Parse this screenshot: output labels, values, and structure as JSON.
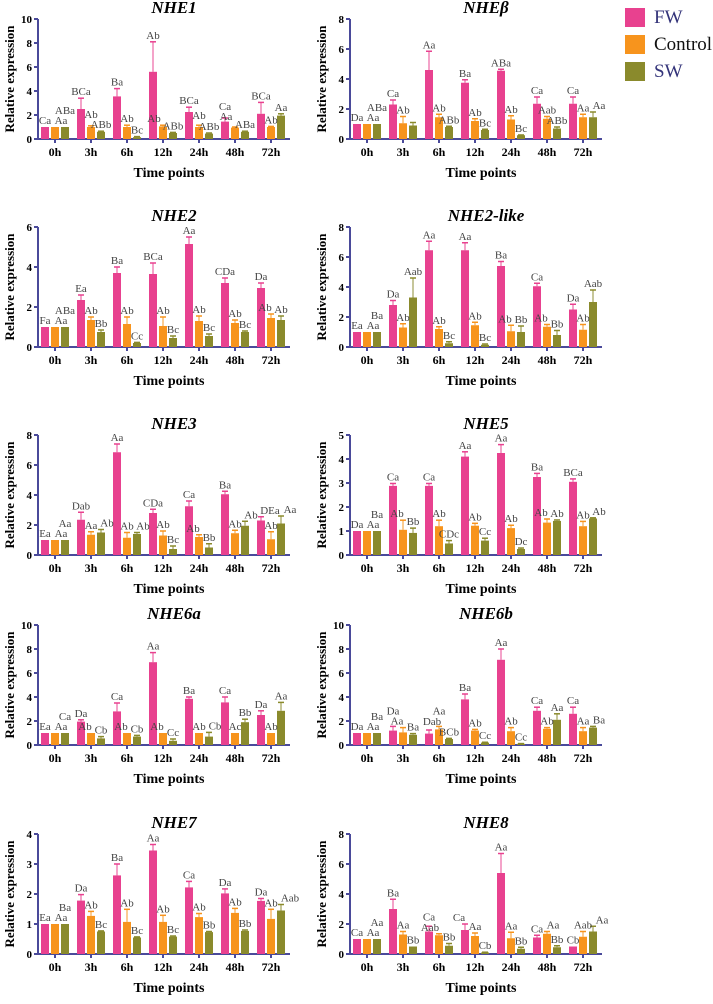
{
  "legend": [
    {
      "name": "FW",
      "color": "#e8418f",
      "text_color": "#34347a"
    },
    {
      "name": "Control",
      "color": "#f7941d",
      "text_color": "#111111"
    },
    {
      "name": "SW",
      "color": "#8a8a2c",
      "text_color": "#34347a"
    }
  ],
  "chart_data": [
    {
      "type": "bar",
      "title": "NHE1",
      "xlabel": "Time points",
      "ylabel": "Relative expression",
      "ylim": [
        0,
        10
      ],
      "ystep": 2,
      "categories": [
        "0h",
        "3h",
        "6h",
        "12h",
        "24h",
        "48h",
        "72h"
      ],
      "series": [
        {
          "name": "FW",
          "values": [
            1,
            2.5,
            3.55,
            5.6,
            2.25,
            1.45,
            2.1
          ],
          "errors": [
            0,
            0.9,
            0.65,
            2.5,
            0.4,
            0.3,
            0.95
          ],
          "labels": [
            "Ca",
            "BCa",
            "Ba",
            "Ab",
            "BCa",
            "Ca",
            "BCa"
          ]
        },
        {
          "name": "Control",
          "values": [
            1,
            1.0,
            1.0,
            1.05,
            1.0,
            0.95,
            1.0
          ],
          "errors": [
            0,
            0.1,
            0.15,
            0.1,
            0.15,
            0.05,
            0.05
          ],
          "labels": [
            "Aa",
            "Ab",
            "Ab",
            "Ab",
            "Ab",
            "Aa",
            "Ab"
          ]
        },
        {
          "name": "SW",
          "values": [
            1,
            0.6,
            0.15,
            0.5,
            0.45,
            0.6,
            1.95
          ],
          "errors": [
            0,
            0.05,
            0.05,
            0.05,
            0.05,
            0.05,
            0.15
          ],
          "labels": [
            "ABa",
            "ABb",
            "Bc",
            "ABb",
            "ABb",
            "ABa",
            "Aa"
          ]
        }
      ]
    },
    {
      "type": "bar",
      "title": "NHEβ",
      "xlabel": "Time points",
      "ylabel": "Relative expression",
      "ylim": [
        0,
        8
      ],
      "ystep": 2,
      "categories": [
        "0h",
        "3h",
        "6h",
        "12h",
        "24h",
        "48h",
        "72h"
      ],
      "series": [
        {
          "name": "FW",
          "values": [
            1,
            2.3,
            4.6,
            3.75,
            4.55,
            2.35,
            2.35
          ],
          "errors": [
            0,
            0.3,
            1.25,
            0.2,
            0.1,
            0.45,
            0.45
          ],
          "labels": [
            "Da",
            "Ca",
            "Aa",
            "Ba",
            "ABa",
            "Ca",
            "Ca"
          ]
        },
        {
          "name": "Control",
          "values": [
            1,
            1.05,
            1.45,
            1.2,
            1.3,
            1.35,
            1.45
          ],
          "errors": [
            0,
            0.45,
            0.2,
            0.15,
            0.25,
            0.15,
            0.2
          ],
          "labels": [
            "Aa",
            "Ab",
            "Ab",
            "Ab",
            "Ab",
            "Aab",
            "Aa"
          ]
        },
        {
          "name": "SW",
          "values": [
            1,
            0.9,
            0.8,
            0.6,
            0.25,
            0.7,
            1.45
          ],
          "errors": [
            0,
            0.2,
            0.05,
            0.05,
            0.02,
            0.1,
            0.35
          ],
          "labels": [
            "ABa",
            "",
            "ABb",
            "Bc",
            "Bc",
            "ABb",
            "Aa"
          ]
        }
      ]
    },
    {
      "type": "bar",
      "title": "NHE2",
      "xlabel": "Time points",
      "ylabel": "Relative expression",
      "ylim": [
        0,
        6
      ],
      "ystep": 2,
      "categories": [
        "0h",
        "3h",
        "6h",
        "12h",
        "24h",
        "48h",
        "72h"
      ],
      "series": [
        {
          "name": "FW",
          "values": [
            1,
            2.35,
            3.7,
            3.65,
            5.15,
            3.2,
            2.95
          ],
          "errors": [
            0,
            0.25,
            0.3,
            0.55,
            0.35,
            0.25,
            0.25
          ],
          "labels": [
            "Fa",
            "Ea",
            "Ba",
            "BCa",
            "Aa",
            "CDa",
            "Da"
          ]
        },
        {
          "name": "Control",
          "values": [
            1,
            1.35,
            1.15,
            1.05,
            1.3,
            1.2,
            1.45
          ],
          "errors": [
            0,
            0.15,
            0.35,
            0.45,
            0.25,
            0.15,
            0.2
          ],
          "labels": [
            "Aa",
            "Ab",
            "Ab",
            "Ab",
            "Ab",
            "Ab",
            "Ab"
          ]
        },
        {
          "name": "SW",
          "values": [
            1,
            0.75,
            0.2,
            0.45,
            0.55,
            0.75,
            1.35
          ],
          "errors": [
            0,
            0.1,
            0.03,
            0.1,
            0.1,
            0.05,
            0.2
          ],
          "labels": [
            "ABa",
            "Bb",
            "Cc",
            "Bc",
            "Bc",
            "Bc",
            "Ab"
          ]
        }
      ]
    },
    {
      "type": "bar",
      "title": "NHE2-like",
      "xlabel": "Time points",
      "ylabel": "Relative expression",
      "ylim": [
        0,
        8
      ],
      "ystep": 2,
      "categories": [
        "0h",
        "3h",
        "6h",
        "12h",
        "24h",
        "48h",
        "72h"
      ],
      "series": [
        {
          "name": "FW",
          "values": [
            1,
            2.8,
            6.45,
            6.45,
            5.4,
            4.05,
            2.5
          ],
          "errors": [
            0,
            0.3,
            0.6,
            0.5,
            0.3,
            0.2,
            0.35
          ],
          "labels": [
            "Ea",
            "Da",
            "Aa",
            "Aa",
            "Ba",
            "Ca",
            "Da"
          ]
        },
        {
          "name": "Control",
          "values": [
            1,
            1.3,
            1.2,
            1.45,
            1.05,
            1.35,
            1.15
          ],
          "errors": [
            0,
            0.25,
            0.15,
            0.2,
            0.4,
            0.15,
            0.35
          ],
          "labels": [
            "Aa",
            "Ab",
            "Ab",
            "Ab",
            "Ab",
            "Ab",
            "Ab"
          ]
        },
        {
          "name": "SW",
          "values": [
            1,
            3.3,
            0.25,
            0.15,
            1.0,
            0.8,
            3.0
          ],
          "errors": [
            0,
            1.3,
            0.1,
            0.05,
            0.4,
            0.3,
            0.8
          ],
          "labels": [
            "Ba",
            "Aab",
            "Bc",
            "Bc",
            "Bb",
            "Bb",
            "Aab"
          ]
        }
      ]
    },
    {
      "type": "bar",
      "title": "NHE3",
      "xlabel": "Time points",
      "ylabel": "Relative expression",
      "ylim": [
        0,
        8
      ],
      "ystep": 2,
      "categories": [
        "0h",
        "3h",
        "6h",
        "12h",
        "24h",
        "48h",
        "72h"
      ],
      "series": [
        {
          "name": "FW",
          "values": [
            1,
            2.35,
            6.85,
            2.8,
            3.25,
            4.05,
            2.3
          ],
          "errors": [
            0,
            0.5,
            0.55,
            0.25,
            0.35,
            0.2,
            0.25
          ],
          "labels": [
            "Ea",
            "Dab",
            "Aa",
            "CDa",
            "Ca",
            "Ba",
            "DEa"
          ]
        },
        {
          "name": "Control",
          "values": [
            1,
            1.35,
            1.15,
            1.3,
            1.2,
            1.45,
            1.05
          ],
          "errors": [
            0,
            0.2,
            0.35,
            0.3,
            0.15,
            0.2,
            0.5
          ],
          "labels": [
            "Aa",
            "Aa",
            "Ab",
            "Ab",
            "Ab",
            "Ab",
            "Ab"
          ]
        },
        {
          "name": "SW",
          "values": [
            1,
            1.5,
            1.4,
            0.4,
            0.5,
            1.95,
            2.1
          ],
          "errors": [
            0,
            0.2,
            0.1,
            0.2,
            0.25,
            0.3,
            0.5
          ],
          "labels": [
            "Aa",
            "Ab",
            "Ab",
            "Bc",
            "Bb",
            "Ab",
            "Aa"
          ]
        }
      ]
    },
    {
      "type": "bar",
      "title": "NHE5",
      "xlabel": "Time points",
      "ylabel": "Relative expression",
      "ylim": [
        0,
        5
      ],
      "ystep": 1,
      "categories": [
        "0h",
        "3h",
        "6h",
        "12h",
        "24h",
        "48h",
        "72h"
      ],
      "series": [
        {
          "name": "FW",
          "values": [
            1,
            2.88,
            2.88,
            4.1,
            4.25,
            3.25,
            3.05
          ],
          "errors": [
            0,
            0.1,
            0.1,
            0.2,
            0.35,
            0.15,
            0.12
          ],
          "labels": [
            "Da",
            "Ca",
            "Ca",
            "Aa",
            "Aa",
            "Ba",
            "BCa"
          ]
        },
        {
          "name": "Control",
          "values": [
            1,
            1.05,
            1.2,
            1.22,
            1.12,
            1.35,
            1.2
          ],
          "errors": [
            0,
            0.4,
            0.25,
            0.1,
            0.12,
            0.15,
            0.2
          ],
          "labels": [
            "Aa",
            "Ab",
            "Ab",
            "Ab",
            "Ab",
            "Ab",
            "Ab"
          ]
        },
        {
          "name": "SW",
          "values": [
            1,
            0.92,
            0.48,
            0.6,
            0.25,
            1.42,
            1.52
          ],
          "errors": [
            0,
            0.2,
            0.12,
            0.1,
            0.04,
            0.04,
            0.03
          ],
          "labels": [
            "Ba",
            "Bb",
            "CDc",
            "Cc",
            "Dc",
            "Ab",
            "Ab"
          ]
        }
      ]
    },
    {
      "type": "bar",
      "title": "NHE6a",
      "xlabel": "Time points",
      "ylabel": "Relative expression",
      "ylim": [
        0,
        10
      ],
      "ystep": 2,
      "categories": [
        "0h",
        "3h",
        "6h",
        "12h",
        "24h",
        "48h",
        "72h"
      ],
      "series": [
        {
          "name": "FW",
          "values": [
            1,
            1.95,
            2.8,
            6.9,
            3.85,
            3.55,
            2.5
          ],
          "errors": [
            0,
            0.15,
            0.7,
            0.8,
            0.15,
            0.45,
            0.35
          ],
          "labels": [
            "Ea",
            "Da",
            "Ca",
            "Aa",
            "Ba",
            "Ca",
            "Da"
          ]
        },
        {
          "name": "Control",
          "values": [
            1,
            1,
            1,
            1,
            1,
            1,
            1
          ],
          "errors": [
            0,
            0,
            0,
            0,
            0,
            0,
            0
          ],
          "labels": [
            "Aa",
            "Ab",
            "Ab",
            "Ab",
            "Ab",
            "Ac",
            "Ab"
          ]
        },
        {
          "name": "SW",
          "values": [
            1,
            0.55,
            0.7,
            0.35,
            0.7,
            1.9,
            2.85
          ],
          "errors": [
            0,
            0.15,
            0.1,
            0.15,
            0.35,
            0.25,
            0.7
          ],
          "labels": [
            "Ca",
            "Cb",
            "Cb",
            "Cc",
            "Cb",
            "Bb",
            "Aa"
          ]
        }
      ]
    },
    {
      "type": "bar",
      "title": "NHE6b",
      "xlabel": "Time points",
      "ylabel": "Relative expression",
      "ylim": [
        0,
        10
      ],
      "ystep": 2,
      "categories": [
        "0h",
        "3h",
        "6h",
        "12h",
        "24h",
        "48h",
        "72h"
      ],
      "series": [
        {
          "name": "FW",
          "values": [
            1,
            1.2,
            0.95,
            3.8,
            7.1,
            2.85,
            2.6
          ],
          "errors": [
            0,
            0.35,
            0.3,
            0.45,
            0.9,
            0.3,
            0.55
          ],
          "labels": [
            "Da",
            "Da",
            "Dab",
            "Ba",
            "Aa",
            "Ca",
            "Ca"
          ]
        },
        {
          "name": "Control",
          "values": [
            1,
            1.05,
            1.3,
            1.2,
            1.15,
            1.35,
            1.15
          ],
          "errors": [
            0,
            0.4,
            0.25,
            0.1,
            0.3,
            0.1,
            0.3
          ],
          "labels": [
            "Aa",
            "Aa",
            "Aa",
            "Ab",
            "Ab",
            "Ab",
            "Aa"
          ]
        },
        {
          "name": "SW",
          "values": [
            1,
            0.85,
            0.5,
            0.2,
            0.1,
            2.1,
            1.45
          ],
          "errors": [
            0,
            0.1,
            0.05,
            0.03,
            0.02,
            0.5,
            0.1
          ],
          "labels": [
            "Ba",
            "Ba",
            "BCb",
            "Cc",
            "Cc",
            "Aa",
            "Ba"
          ]
        }
      ]
    },
    {
      "type": "bar",
      "title": "NHE7",
      "xlabel": "Time points",
      "ylabel": "Relative expression",
      "ylim": [
        0,
        4
      ],
      "ystep": 1,
      "categories": [
        "0h",
        "3h",
        "6h",
        "12h",
        "24h",
        "48h",
        "72h"
      ],
      "series": [
        {
          "name": "FW",
          "values": [
            1,
            1.78,
            2.62,
            3.45,
            2.22,
            2.02,
            1.77
          ],
          "errors": [
            0,
            0.2,
            0.38,
            0.2,
            0.2,
            0.15,
            0.08
          ],
          "labels": [
            "Ea",
            "Da",
            "Ba",
            "Aa",
            "Ca",
            "Da",
            "Da"
          ]
        },
        {
          "name": "Control",
          "values": [
            1,
            1.27,
            1.07,
            1.07,
            1.23,
            1.37,
            1.17
          ],
          "errors": [
            0,
            0.15,
            0.42,
            0.22,
            0.12,
            0.15,
            0.32
          ],
          "labels": [
            "Aa",
            "Ab",
            "Ab",
            "Ab",
            "Ab",
            "Ab",
            "Ab"
          ]
        },
        {
          "name": "SW",
          "values": [
            1,
            0.75,
            0.55,
            0.58,
            0.73,
            0.77,
            1.45
          ],
          "errors": [
            0,
            0.02,
            0.02,
            0.02,
            0.02,
            0.03,
            0.2
          ],
          "labels": [
            "Ba",
            "Bc",
            "Bc",
            "Bc",
            "Bb",
            "Bb",
            "Aab"
          ]
        }
      ]
    },
    {
      "type": "bar",
      "title": "NHE8",
      "xlabel": "Time points",
      "ylabel": "Relative expression",
      "ylim": [
        0,
        8
      ],
      "ystep": 2,
      "categories": [
        "0h",
        "3h",
        "6h",
        "12h",
        "24h",
        "48h",
        "72h"
      ],
      "series": [
        {
          "name": "FW",
          "values": [
            1,
            3.0,
            1.5,
            1.6,
            5.4,
            1.1,
            0.5
          ],
          "errors": [
            0,
            0.65,
            0.35,
            0.4,
            1.3,
            0.15,
            0
          ],
          "labels": [
            "Ca",
            "Ba",
            "Ca",
            "Ca",
            "Aa",
            "Ca",
            "Cb"
          ]
        },
        {
          "name": "Control",
          "values": [
            1,
            1.3,
            1.25,
            1.2,
            1.05,
            1.35,
            1.15
          ],
          "errors": [
            0,
            0.2,
            0.1,
            0.2,
            0.4,
            0.15,
            0.35
          ],
          "labels": [
            "Aa",
            "Aa",
            "Aab",
            "Aa",
            "Aa",
            "Aa",
            "Aab"
          ]
        },
        {
          "name": "SW",
          "values": [
            1,
            0.5,
            0.55,
            0.1,
            0.35,
            0.45,
            1.5
          ],
          "errors": [
            0,
            0,
            0.15,
            0.02,
            0.1,
            0.1,
            0.35
          ],
          "labels": [
            "Aa",
            "Bb",
            "Bb",
            "Cb",
            "Bb",
            "Bb",
            "Aa"
          ]
        }
      ]
    }
  ]
}
